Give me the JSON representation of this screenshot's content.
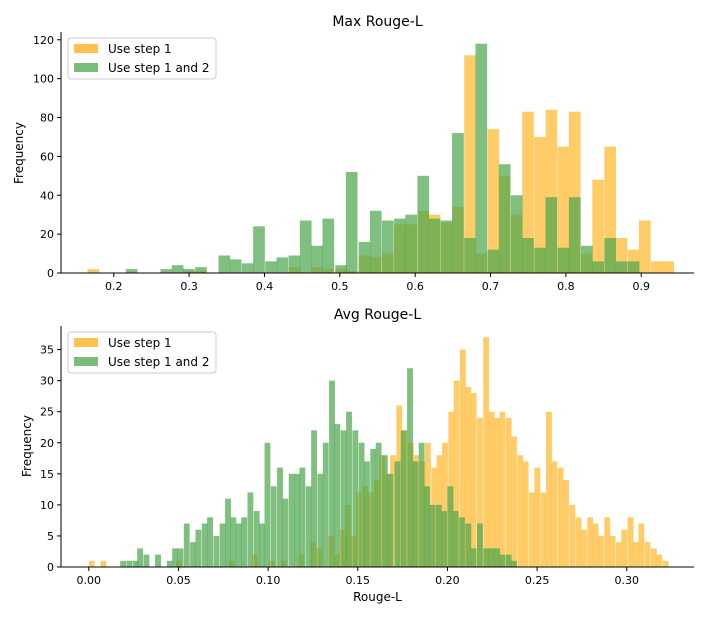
{
  "colors": {
    "series1": "#ffc34d",
    "series2": "#4ea64e",
    "overlap": "#8c9e2a"
  },
  "chart_data": [
    {
      "type": "bar",
      "title": "Max Rouge-L",
      "xlabel": "",
      "ylabel": "Frequency",
      "xlim": [
        0.13,
        0.97
      ],
      "ylim": [
        0,
        124
      ],
      "xticks": [
        0.2,
        0.3,
        0.4,
        0.5,
        0.6,
        0.7,
        0.8,
        0.9
      ],
      "xtick_labels": [
        "0.2",
        "0.3",
        "0.4",
        "0.5",
        "0.6",
        "0.7",
        "0.8",
        "0.9"
      ],
      "yticks": [
        0,
        20,
        40,
        60,
        80,
        100,
        120
      ],
      "ytick_labels": [
        "0",
        "20",
        "40",
        "60",
        "80",
        "100",
        "120"
      ],
      "bin_width": 0.0155,
      "legend": {
        "position": "top-left",
        "entries": [
          "Use step 1",
          "Use step 1 and 2"
        ]
      },
      "series": [
        {
          "name": "Use step 1",
          "bins": [
            [
              0.165,
              2
            ],
            [
              0.292,
              1
            ],
            [
              0.308,
              1
            ],
            [
              0.432,
              3
            ],
            [
              0.462,
              3
            ],
            [
              0.477,
              2
            ],
            [
              0.494,
              2
            ],
            [
              0.508,
              1
            ],
            [
              0.525,
              9
            ],
            [
              0.54,
              8
            ],
            [
              0.556,
              10
            ],
            [
              0.572,
              25
            ],
            [
              0.587,
              25
            ],
            [
              0.603,
              32
            ],
            [
              0.618,
              30
            ],
            [
              0.634,
              26
            ],
            [
              0.649,
              34
            ],
            [
              0.665,
              112
            ],
            [
              0.68,
              10
            ],
            [
              0.696,
              74
            ],
            [
              0.711,
              50
            ],
            [
              0.727,
              30
            ],
            [
              0.742,
              83
            ],
            [
              0.758,
              70
            ],
            [
              0.773,
              84
            ],
            [
              0.789,
              65
            ],
            [
              0.804,
              83
            ],
            [
              0.82,
              10
            ],
            [
              0.835,
              48
            ],
            [
              0.851,
              65
            ],
            [
              0.866,
              18
            ],
            [
              0.882,
              12
            ],
            [
              0.897,
              27
            ],
            [
              0.913,
              6
            ],
            [
              0.928,
              6
            ]
          ]
        },
        {
          "name": "Use step 1 and 2",
          "bins": [
            [
              0.216,
              2
            ],
            [
              0.262,
              2
            ],
            [
              0.277,
              4
            ],
            [
              0.292,
              2
            ],
            [
              0.308,
              3
            ],
            [
              0.339,
              9
            ],
            [
              0.354,
              7
            ],
            [
              0.37,
              5
            ],
            [
              0.385,
              24
            ],
            [
              0.401,
              6
            ],
            [
              0.416,
              8
            ],
            [
              0.432,
              9
            ],
            [
              0.447,
              27
            ],
            [
              0.462,
              14
            ],
            [
              0.477,
              28
            ],
            [
              0.494,
              4
            ],
            [
              0.508,
              52
            ],
            [
              0.525,
              16
            ],
            [
              0.54,
              32
            ],
            [
              0.556,
              27
            ],
            [
              0.572,
              28
            ],
            [
              0.587,
              30
            ],
            [
              0.603,
              50
            ],
            [
              0.618,
              28
            ],
            [
              0.634,
              27
            ],
            [
              0.649,
              72
            ],
            [
              0.665,
              18
            ],
            [
              0.68,
              118
            ],
            [
              0.696,
              12
            ],
            [
              0.711,
              56
            ],
            [
              0.727,
              40
            ],
            [
              0.742,
              18
            ],
            [
              0.758,
              13
            ],
            [
              0.773,
              39
            ],
            [
              0.789,
              13
            ],
            [
              0.804,
              39
            ],
            [
              0.82,
              14
            ],
            [
              0.835,
              6
            ],
            [
              0.851,
              18
            ],
            [
              0.866,
              6
            ],
            [
              0.882,
              6
            ]
          ]
        }
      ]
    },
    {
      "type": "bar",
      "title": "Avg Rouge-L",
      "xlabel": "Rouge-L",
      "ylabel": "Frequency",
      "xlim": [
        -0.0155,
        0.3375
      ],
      "ylim": [
        0,
        38.8
      ],
      "xticks": [
        0.0,
        0.05,
        0.1,
        0.15,
        0.2,
        0.25,
        0.3
      ],
      "xtick_labels": [
        "0.00",
        "0.05",
        "0.10",
        "0.15",
        "0.20",
        "0.25",
        "0.30"
      ],
      "yticks": [
        0,
        5,
        10,
        15,
        20,
        25,
        30,
        35
      ],
      "ytick_labels": [
        "0",
        "5",
        "10",
        "15",
        "20",
        "25",
        "30",
        "35"
      ],
      "bin_width": 0.00325,
      "legend": {
        "position": "top-left",
        "entries": [
          "Use step 1",
          "Use step 1 and 2"
        ]
      },
      "series": [
        {
          "name": "Use step 1",
          "bins": [
            [
              0.0,
              1
            ],
            [
              0.0065,
              1
            ],
            [
              0.0485,
              1
            ],
            [
              0.078,
              1
            ],
            [
              0.091,
              2
            ],
            [
              0.1005,
              1
            ],
            [
              0.107,
              1
            ],
            [
              0.117,
              2
            ],
            [
              0.1235,
              4
            ],
            [
              0.127,
              3
            ],
            [
              0.1335,
              5
            ],
            [
              0.1365,
              2
            ],
            [
              0.14,
              6
            ],
            [
              0.143,
              10
            ],
            [
              0.146,
              5
            ],
            [
              0.149,
              12
            ],
            [
              0.1525,
              13
            ],
            [
              0.1555,
              12
            ],
            [
              0.159,
              14
            ],
            [
              0.162,
              18
            ],
            [
              0.165,
              15
            ],
            [
              0.168,
              18
            ],
            [
              0.1715,
              26
            ],
            [
              0.1745,
              22
            ],
            [
              0.178,
              20
            ],
            [
              0.181,
              18
            ],
            [
              0.1845,
              17
            ],
            [
              0.1875,
              20
            ],
            [
              0.191,
              16
            ],
            [
              0.194,
              18
            ],
            [
              0.197,
              20
            ],
            [
              0.2005,
              25
            ],
            [
              0.2035,
              30
            ],
            [
              0.207,
              35
            ],
            [
              0.21,
              29
            ],
            [
              0.213,
              28
            ],
            [
              0.2165,
              24
            ],
            [
              0.22,
              37
            ],
            [
              0.223,
              25
            ],
            [
              0.226,
              24
            ],
            [
              0.229,
              25
            ],
            [
              0.2325,
              24
            ],
            [
              0.2355,
              21
            ],
            [
              0.239,
              18
            ],
            [
              0.242,
              17
            ],
            [
              0.2455,
              12
            ],
            [
              0.2485,
              16
            ],
            [
              0.252,
              12
            ],
            [
              0.255,
              25
            ],
            [
              0.258,
              17
            ],
            [
              0.2615,
              16
            ],
            [
              0.2645,
              14
            ],
            [
              0.268,
              10
            ],
            [
              0.2715,
              8
            ],
            [
              0.2745,
              6
            ],
            [
              0.278,
              8
            ],
            [
              0.281,
              7
            ],
            [
              0.284,
              5
            ],
            [
              0.2875,
              8
            ],
            [
              0.2905,
              5
            ],
            [
              0.294,
              4
            ],
            [
              0.297,
              6
            ],
            [
              0.3005,
              8
            ],
            [
              0.3035,
              4
            ],
            [
              0.3065,
              7
            ],
            [
              0.31,
              4
            ],
            [
              0.3135,
              3
            ],
            [
              0.3165,
              2
            ],
            [
              0.32,
              1
            ]
          ]
        },
        {
          "name": "Use step 1 and 2",
          "bins": [
            [
              0.0175,
              1
            ],
            [
              0.021,
              1
            ],
            [
              0.0245,
              1
            ],
            [
              0.027,
              3
            ],
            [
              0.0305,
              2
            ],
            [
              0.037,
              2
            ],
            [
              0.0435,
              1
            ],
            [
              0.0465,
              3
            ],
            [
              0.0495,
              3
            ],
            [
              0.053,
              7
            ],
            [
              0.0565,
              4
            ],
            [
              0.0595,
              6
            ],
            [
              0.063,
              7
            ],
            [
              0.066,
              8
            ],
            [
              0.0695,
              5
            ],
            [
              0.073,
              7
            ],
            [
              0.076,
              11
            ],
            [
              0.079,
              8
            ],
            [
              0.082,
              7
            ],
            [
              0.085,
              8
            ],
            [
              0.0885,
              12
            ],
            [
              0.092,
              9
            ],
            [
              0.095,
              7
            ],
            [
              0.098,
              20
            ],
            [
              0.1015,
              13
            ],
            [
              0.105,
              16
            ],
            [
              0.108,
              11
            ],
            [
              0.1115,
              15
            ],
            [
              0.1145,
              15
            ],
            [
              0.1175,
              16
            ],
            [
              0.121,
              13
            ],
            [
              0.124,
              22
            ],
            [
              0.1275,
              15
            ],
            [
              0.1305,
              20
            ],
            [
              0.134,
              30
            ],
            [
              0.137,
              23
            ],
            [
              0.1405,
              22
            ],
            [
              0.1435,
              25
            ],
            [
              0.147,
              22
            ],
            [
              0.1505,
              20
            ],
            [
              0.1535,
              17
            ],
            [
              0.157,
              19
            ],
            [
              0.16,
              20
            ],
            [
              0.1635,
              18
            ],
            [
              0.1665,
              15
            ],
            [
              0.1705,
              17
            ],
            [
              0.174,
              22
            ],
            [
              0.1775,
              32
            ],
            [
              0.1805,
              17
            ],
            [
              0.184,
              20
            ],
            [
              0.187,
              13
            ],
            [
              0.19,
              10
            ],
            [
              0.1935,
              10
            ],
            [
              0.1965,
              9
            ],
            [
              0.2,
              13
            ],
            [
              0.203,
              9
            ],
            [
              0.2065,
              8
            ],
            [
              0.21,
              7
            ],
            [
              0.213,
              3
            ],
            [
              0.2165,
              7
            ],
            [
              0.22,
              3
            ],
            [
              0.223,
              3
            ],
            [
              0.226,
              3
            ],
            [
              0.229,
              2
            ],
            [
              0.2325,
              2
            ],
            [
              0.2355,
              1
            ]
          ]
        }
      ]
    }
  ]
}
